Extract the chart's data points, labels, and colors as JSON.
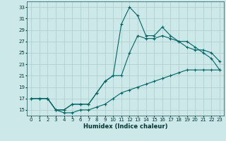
{
  "xlabel": "Humidex (Indice chaleur)",
  "bg_color": "#cce8e8",
  "grid_color": "#aacccc",
  "line_color": "#006666",
  "xlim": [
    -0.5,
    23.5
  ],
  "ylim": [
    14,
    34
  ],
  "xticks": [
    0,
    1,
    2,
    3,
    4,
    5,
    6,
    7,
    8,
    9,
    10,
    11,
    12,
    13,
    14,
    15,
    16,
    17,
    18,
    19,
    20,
    21,
    22,
    23
  ],
  "yticks": [
    15,
    17,
    19,
    21,
    23,
    25,
    27,
    29,
    31,
    33
  ],
  "line1_x": [
    0,
    1,
    2,
    3,
    4,
    5,
    6,
    7,
    8,
    9,
    10,
    11,
    12,
    13,
    14,
    15,
    16,
    17,
    18,
    19,
    20,
    21,
    22,
    23
  ],
  "line1_y": [
    17,
    17,
    17,
    15,
    15,
    16,
    16,
    16,
    18,
    20,
    21,
    30,
    33,
    31.5,
    28,
    28,
    29.5,
    28,
    27,
    27,
    26,
    25,
    24,
    22
  ],
  "line2_x": [
    0,
    1,
    2,
    3,
    4,
    5,
    6,
    7,
    8,
    9,
    10,
    11,
    12,
    13,
    14,
    15,
    16,
    17,
    18,
    19,
    20,
    21,
    22,
    23
  ],
  "line2_y": [
    17,
    17,
    17,
    15,
    15,
    16,
    16,
    16,
    18,
    20,
    21,
    21,
    25,
    28,
    27.5,
    27.5,
    28,
    27.5,
    27,
    26,
    25.5,
    25.5,
    25,
    23.5
  ],
  "line3_x": [
    0,
    1,
    2,
    3,
    4,
    5,
    6,
    7,
    8,
    9,
    10,
    11,
    12,
    13,
    14,
    15,
    16,
    17,
    18,
    19,
    20,
    21,
    22,
    23
  ],
  "line3_y": [
    17,
    17,
    17,
    15,
    14.5,
    14.5,
    15,
    15,
    15.5,
    16,
    17,
    18,
    18.5,
    19,
    19.5,
    20,
    20.5,
    21,
    21.5,
    22,
    22,
    22,
    22,
    22
  ]
}
